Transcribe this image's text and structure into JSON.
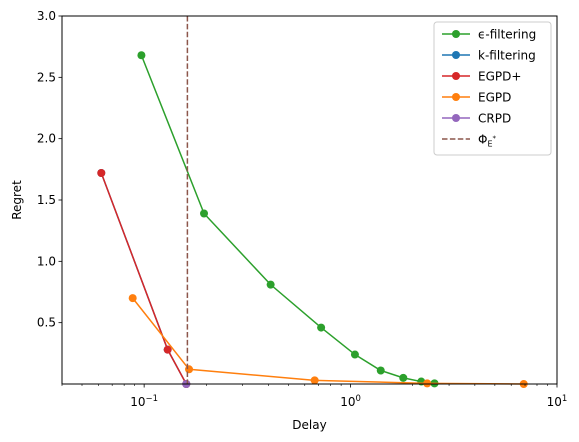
{
  "chart_data": {
    "type": "line",
    "xlabel": "Delay",
    "ylabel": "Regret",
    "xscale": "log",
    "xlim": [
      0.04,
      10
    ],
    "ylim": [
      0,
      3.0
    ],
    "grid": false,
    "legend_position": "upper-right",
    "x_tick_labels": [
      {
        "value": 0.1,
        "base": "10",
        "exp": "−1"
      },
      {
        "value": 1,
        "base": "10",
        "exp": "0"
      },
      {
        "value": 10,
        "base": "10",
        "exp": "1"
      }
    ],
    "y_tick_labels": [
      {
        "value": 0.5,
        "label": "0.5"
      },
      {
        "value": 1.0,
        "label": "1.0"
      },
      {
        "value": 1.5,
        "label": "1.5"
      },
      {
        "value": 2.0,
        "label": "2.0"
      },
      {
        "value": 2.5,
        "label": "2.5"
      },
      {
        "value": 3.0,
        "label": "3.0"
      }
    ],
    "series": [
      {
        "name": "ϵ-filtering",
        "color": "#2ca02c",
        "style": "line-marker",
        "x": [
          0.097,
          0.195,
          0.41,
          0.72,
          1.05,
          1.4,
          1.8,
          2.2,
          2.55
        ],
        "y": [
          2.68,
          1.39,
          0.81,
          0.46,
          0.24,
          0.11,
          0.05,
          0.02,
          0.005
        ]
      },
      {
        "name": "k-filtering",
        "color": "#1f77b4",
        "style": "line-marker",
        "x": [
          0.062,
          0.13,
          0.16
        ],
        "y": [
          1.72,
          0.28,
          0.0
        ]
      },
      {
        "name": "EGPD+",
        "color": "#d62728",
        "style": "line-marker",
        "x": [
          0.062,
          0.13,
          0.16
        ],
        "y": [
          1.72,
          0.28,
          0.0
        ]
      },
      {
        "name": "EGPD",
        "color": "#ff7f0e",
        "style": "line-marker",
        "x": [
          0.088,
          0.165,
          0.67,
          2.35,
          6.9
        ],
        "y": [
          0.7,
          0.12,
          0.03,
          0.005,
          0.0
        ]
      },
      {
        "name": "CRPD",
        "color": "#9467bd",
        "style": "line-marker",
        "x": [
          0.16
        ],
        "y": [
          0.0
        ]
      },
      {
        "name": "Φ",
        "name_sub": "E",
        "name_sup": "*",
        "color": "#8c564b",
        "style": "vline-dashed",
        "x": [
          0.162
        ]
      }
    ]
  }
}
